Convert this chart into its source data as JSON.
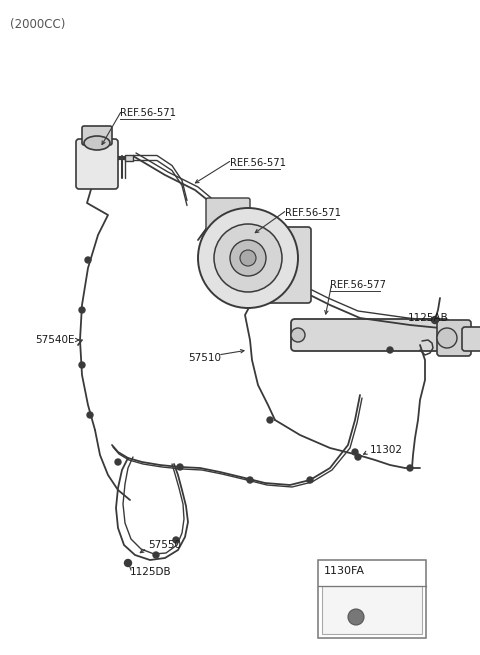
{
  "bg_color": "#ffffff",
  "line_color": "#3a3a3a",
  "label_color": "#1a1a1a",
  "title": "(2000CC)",
  "title_fontsize": 8.5,
  "label_fontsize": 7.5,
  "ref_fontsize": 7.2,
  "fig_w": 4.8,
  "fig_h": 6.55,
  "dpi": 100,
  "xlim": [
    0,
    480
  ],
  "ylim": [
    0,
    655
  ]
}
